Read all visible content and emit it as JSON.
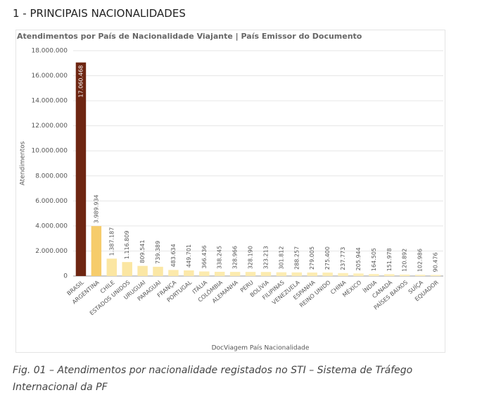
{
  "heading": "1 - PRINCIPAIS NACIONALIDADES",
  "chart_data": {
    "type": "bar",
    "title": "Atendimentos por País de Nacionalidade Viajante | País Emissor do Documento",
    "x_label": "DocViagem País Nacionalidade",
    "y_label": "Atendimentos",
    "categories": [
      "BRASIL",
      "ARGENTINA",
      "CHILE",
      "ESTADOS UNIDOS",
      "URUGUAI",
      "PARAGUAI",
      "FRANÇA",
      "PORTUGAL",
      "ITÁLIA",
      "COLÔMBIA",
      "ALEMANHA",
      "PERU",
      "BOLÍVIA",
      "FILIPINAS",
      "VENEZUELA",
      "ESPANHA",
      "REINO UNIDO",
      "CHINA",
      "MÉXICO",
      "ÍNDIA",
      "CANADÁ",
      "PAÍSES BAIXOS",
      "SUÍÇA",
      "EQUADOR"
    ],
    "values": [
      17060468,
      3989934,
      1387187,
      1116809,
      809541,
      739389,
      483634,
      449701,
      366436,
      338245,
      328966,
      328190,
      323213,
      301812,
      288257,
      279005,
      275400,
      237773,
      205944,
      164505,
      151978,
      120892,
      102986,
      90476
    ],
    "value_labels": [
      "17.060.468",
      "3.989.934",
      "1.387.187",
      "1.116.809",
      "809.541",
      "739.389",
      "483.634",
      "449.701",
      "366.436",
      "338.245",
      "328.966",
      "328.190",
      "323.213",
      "301.812",
      "288.257",
      "279.005",
      "275.400",
      "237.773",
      "205.944",
      "164.505",
      "151.978",
      "120.892",
      "102.986",
      "90.476"
    ],
    "colors": [
      "#6e2612",
      "#f6cc6b",
      "#fbe6a2",
      "#fbe6a2",
      "#fbe7a5",
      "#fbe7a5",
      "#fce9aa",
      "#fce9aa",
      "#fcebae",
      "#fcebae",
      "#fcebae",
      "#fcebae",
      "#fcebae",
      "#fcecb2",
      "#fcecb2",
      "#fcecb2",
      "#fcecb2",
      "#fdeeb6",
      "#fdeeb6",
      "#fdefba",
      "#fdefba",
      "#fdf0be",
      "#fdf0be",
      "#fdf0be"
    ],
    "ylim": [
      0,
      18000000
    ],
    "yticks": [
      0,
      {
        "value": 2000000,
        "label": "2.000.000"
      },
      {
        "value": 4000000,
        "label": "4.000.000"
      },
      {
        "value": 6000000,
        "label": "6.000.000"
      },
      {
        "value": 8000000,
        "label": "8.000.000"
      },
      {
        "value": 10000000,
        "label": "10.000.000"
      },
      {
        "value": 12000000,
        "label": "12.000.000"
      },
      {
        "value": 14000000,
        "label": "14.000.000"
      },
      {
        "value": 16000000,
        "label": "16.000.000"
      },
      {
        "value": 18000000,
        "label": "18.000.000"
      }
    ],
    "grid": true
  },
  "caption": "Fig. 01 – Atendimentos por nacionalidade registados no STI – Sistema de Tráfego Internacional da PF"
}
